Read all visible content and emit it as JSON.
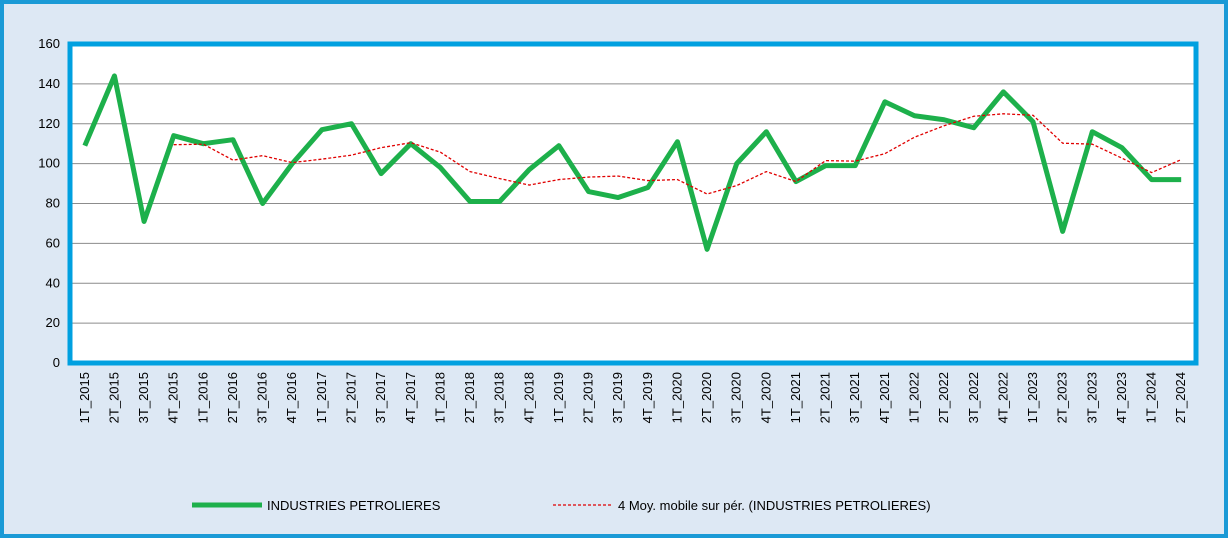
{
  "chart_data": {
    "type": "line",
    "categories": [
      "1T_2015",
      "2T_2015",
      "3T_2015",
      "4T_2015",
      "1T_2016",
      "2T_2016",
      "3T_2016",
      "4T_2016",
      "1T_2017",
      "2T_2017",
      "3T_2017",
      "4T_2017",
      "1T_2018",
      "2T_2018",
      "3T_2018",
      "4T_2018",
      "1T_2019",
      "2T_2019",
      "3T_2019",
      "4T_2019",
      "1T_2020",
      "2T_2020",
      "3T_2020",
      "4T_2020",
      "1T_2021",
      "2T_2021",
      "3T_2021",
      "4T_2021",
      "1T_2022",
      "2T_2022",
      "3T_2022",
      "4T_2022",
      "1T_2023",
      "2T_2023",
      "3T_2023",
      "4T_2023",
      "1T_2024",
      "2T_2024"
    ],
    "series": [
      {
        "name": "INDUSTRIES PETROLIERES",
        "color": "#1db04b",
        "values": [
          109,
          144,
          71,
          114,
          110,
          112,
          80,
          100,
          117,
          120,
          95,
          110,
          98,
          81,
          81,
          97,
          109,
          86,
          83,
          88,
          111,
          57,
          100,
          116,
          91,
          99,
          99,
          131,
          124,
          122,
          118,
          136,
          121,
          66,
          116,
          108,
          92,
          92
        ]
      },
      {
        "name": "4 Moy. mobile sur pér. (INDUSTRIES PETROLIERES)",
        "color": "#e00000",
        "values": [
          null,
          null,
          null,
          109.5,
          109.75,
          101.75,
          104,
          100.5,
          102.25,
          104.25,
          108,
          110.5,
          105.75,
          96,
          92.5,
          89.25,
          92,
          93.25,
          93.75,
          91.5,
          92,
          84.75,
          89,
          96,
          91,
          101.5,
          101.25,
          105,
          113.25,
          119,
          123.75,
          125,
          124.25,
          110.25,
          109.75,
          102.75,
          95.5,
          102
        ]
      }
    ],
    "ylim": [
      0,
      160
    ],
    "yticks": [
      0,
      20,
      40,
      60,
      80,
      100,
      120,
      140,
      160
    ],
    "grid": true,
    "legend": "bottom"
  }
}
